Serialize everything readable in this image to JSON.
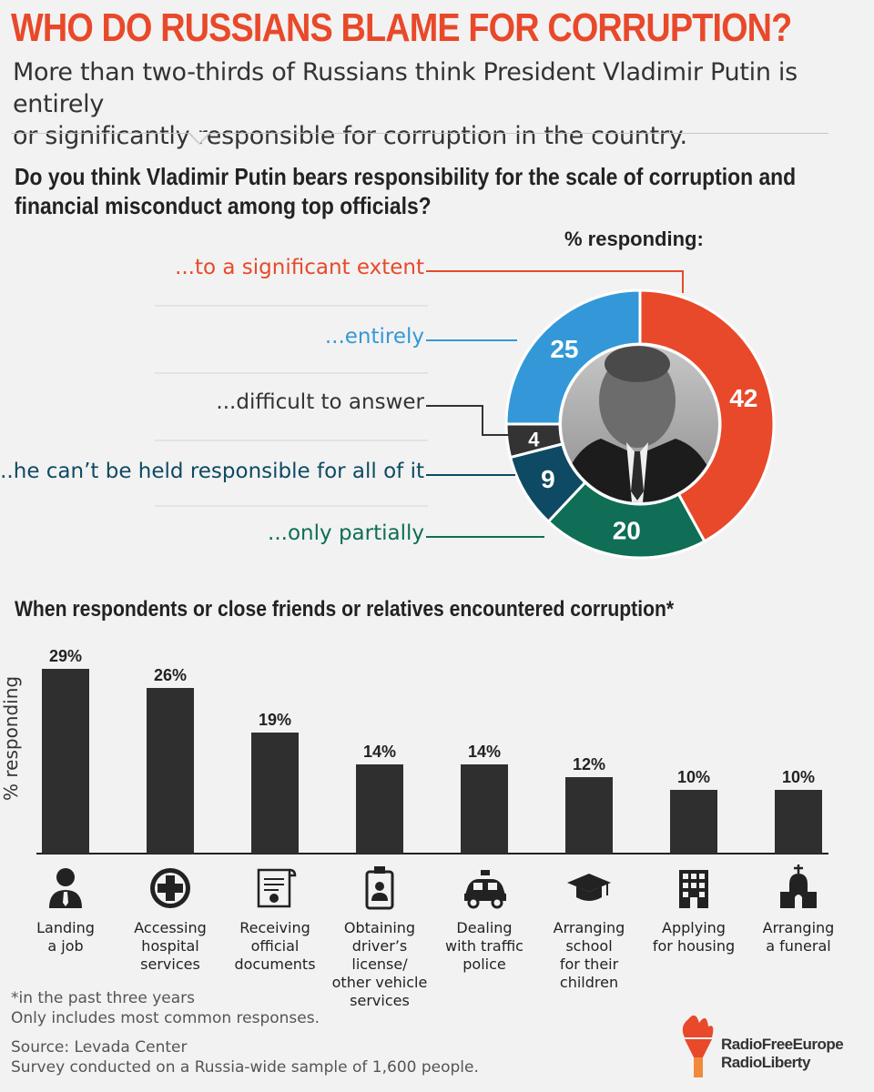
{
  "header": {
    "title": "WHO DO RUSSIANS BLAME FOR CORRUPTION?",
    "subtitle_line1": "More than two-thirds of Russians think President Vladimir Putin is entirely",
    "subtitle_line2": "or significantly responsible for corruption in the country."
  },
  "colors": {
    "accent": "#e8492a",
    "blue": "#3498d8",
    "dark": "#333333",
    "navy": "#0e4a63",
    "green": "#0f6e55"
  },
  "chart_data": [
    {
      "type": "pie",
      "title_line1": "Do you think Vladimir Putin bears responsibility for the scale of corruption and",
      "title_line2": "financial misconduct among top officials?",
      "unit_label": "% responding:",
      "slices": [
        {
          "label": "...to a significant extent",
          "value": 42,
          "color": "#e8492a"
        },
        {
          "label": "...only partially",
          "value": 20,
          "color": "#0f6e55"
        },
        {
          "label": "...he can’t be held responsible for all of it",
          "value": 9,
          "color": "#0e4a63"
        },
        {
          "label": "...difficult to answer",
          "value": 4,
          "color": "#333333"
        },
        {
          "label": "...entirely",
          "value": 25,
          "color": "#3498d8"
        }
      ],
      "center_image": "photo of Vladimir Putin"
    },
    {
      "type": "bar",
      "title": "When respondents or close friends or relatives encountered corruption*",
      "ylabel": "% responding",
      "ylim": [
        0,
        30
      ],
      "categories": [
        {
          "label_lines": [
            "Landing",
            "a job"
          ],
          "icon": "person-tie-icon"
        },
        {
          "label_lines": [
            "Accessing",
            "hospital",
            "services"
          ],
          "icon": "medical-cross-icon"
        },
        {
          "label_lines": [
            "Receiving",
            "official",
            "documents"
          ],
          "icon": "certificate-icon"
        },
        {
          "label_lines": [
            "Obtaining",
            "driver’s",
            "license/",
            "other vehicle",
            "services"
          ],
          "icon": "id-badge-icon"
        },
        {
          "label_lines": [
            "Dealing",
            "with traffic",
            "police"
          ],
          "icon": "police-car-icon"
        },
        {
          "label_lines": [
            "Arranging",
            "school",
            "for their",
            "children"
          ],
          "icon": "graduation-cap-icon"
        },
        {
          "label_lines": [
            "Applying",
            "for housing"
          ],
          "icon": "building-icon"
        },
        {
          "label_lines": [
            "Arranging",
            "a funeral"
          ],
          "icon": "church-icon"
        }
      ],
      "values": [
        29,
        26,
        19,
        14,
        14,
        12,
        10,
        10
      ],
      "value_labels": [
        "29%",
        "26%",
        "19%",
        "14%",
        "14%",
        "12%",
        "10%",
        "10%"
      ]
    }
  ],
  "footer": {
    "footnote_line1": "*in the past three years",
    "footnote_line2": "Only includes most common responses.",
    "source_line1": "Source: Levada Center",
    "source_line2": "Survey conducted on a Russia-wide sample of 1,600 people.",
    "logo_line1": "RadioFreeEurope",
    "logo_line2": "RadioLiberty"
  }
}
